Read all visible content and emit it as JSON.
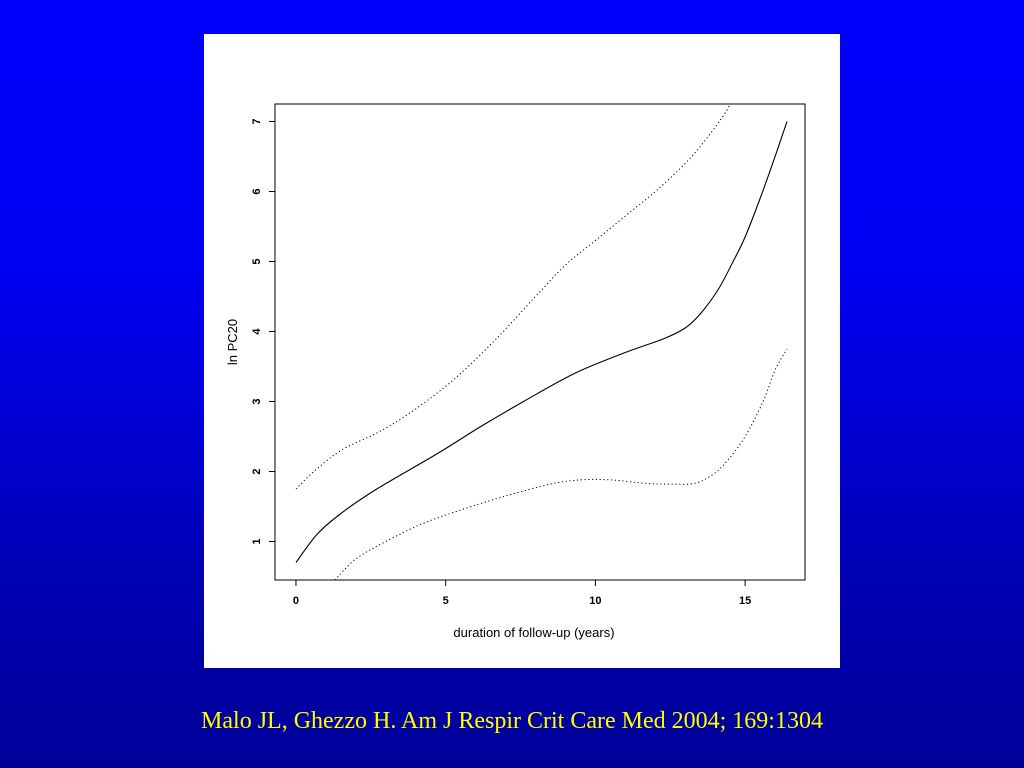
{
  "citation": "Malo JL, Ghezzo H. Am J Respir Crit Care Med 2004; 169:1304",
  "colors": {
    "background_top": "#0000ff",
    "background_bottom": "#000098",
    "citation_text": "#ffff00",
    "panel": "#ffffff"
  },
  "chart_data": {
    "type": "line",
    "xlabel": "duration of follow-up (years)",
    "ylabel": "ln PC20",
    "xlim": [
      -0.7,
      17
    ],
    "ylim": [
      0.45,
      7.25
    ],
    "xticks": [
      "0",
      "5",
      "10",
      "15"
    ],
    "yticks": [
      "1",
      "2",
      "3",
      "4",
      "5",
      "6",
      "7"
    ],
    "grid": false,
    "series": [
      {
        "style": "solid",
        "points": [
          [
            0,
            0.7
          ],
          [
            0.7,
            1.1
          ],
          [
            1.5,
            1.4
          ],
          [
            2.7,
            1.75
          ],
          [
            4.7,
            2.25
          ],
          [
            6.2,
            2.65
          ],
          [
            7.6,
            3.0
          ],
          [
            9.3,
            3.4
          ],
          [
            11,
            3.7
          ],
          [
            12.3,
            3.9
          ],
          [
            13,
            4.05
          ],
          [
            13.5,
            4.25
          ],
          [
            14.1,
            4.6
          ],
          [
            14.6,
            5.0
          ],
          [
            15,
            5.35
          ],
          [
            15.5,
            5.9
          ],
          [
            16,
            6.5
          ],
          [
            16.4,
            7.0
          ]
        ]
      },
      {
        "style": "dotted",
        "points": [
          [
            0,
            1.75
          ],
          [
            0.6,
            2.0
          ],
          [
            1.5,
            2.3
          ],
          [
            2.7,
            2.55
          ],
          [
            3.5,
            2.75
          ],
          [
            4.5,
            3.05
          ],
          [
            5.5,
            3.4
          ],
          [
            6.7,
            3.9
          ],
          [
            8,
            4.5
          ],
          [
            9,
            4.95
          ],
          [
            10,
            5.3
          ],
          [
            11,
            5.65
          ],
          [
            12,
            6.0
          ],
          [
            13,
            6.4
          ],
          [
            13.7,
            6.75
          ],
          [
            14.3,
            7.1
          ],
          [
            14.5,
            7.25
          ]
        ]
      },
      {
        "style": "dotted",
        "points": [
          [
            1.3,
            0.45
          ],
          [
            2,
            0.75
          ],
          [
            3,
            1.0
          ],
          [
            4.2,
            1.25
          ],
          [
            5.5,
            1.45
          ],
          [
            7,
            1.65
          ],
          [
            8.5,
            1.82
          ],
          [
            9.5,
            1.88
          ],
          [
            10.5,
            1.88
          ],
          [
            11.7,
            1.83
          ],
          [
            12.5,
            1.82
          ],
          [
            13.3,
            1.83
          ],
          [
            13.9,
            1.95
          ],
          [
            14.4,
            2.15
          ],
          [
            15,
            2.5
          ],
          [
            15.6,
            3.0
          ],
          [
            16,
            3.45
          ],
          [
            16.4,
            3.75
          ]
        ]
      }
    ]
  }
}
